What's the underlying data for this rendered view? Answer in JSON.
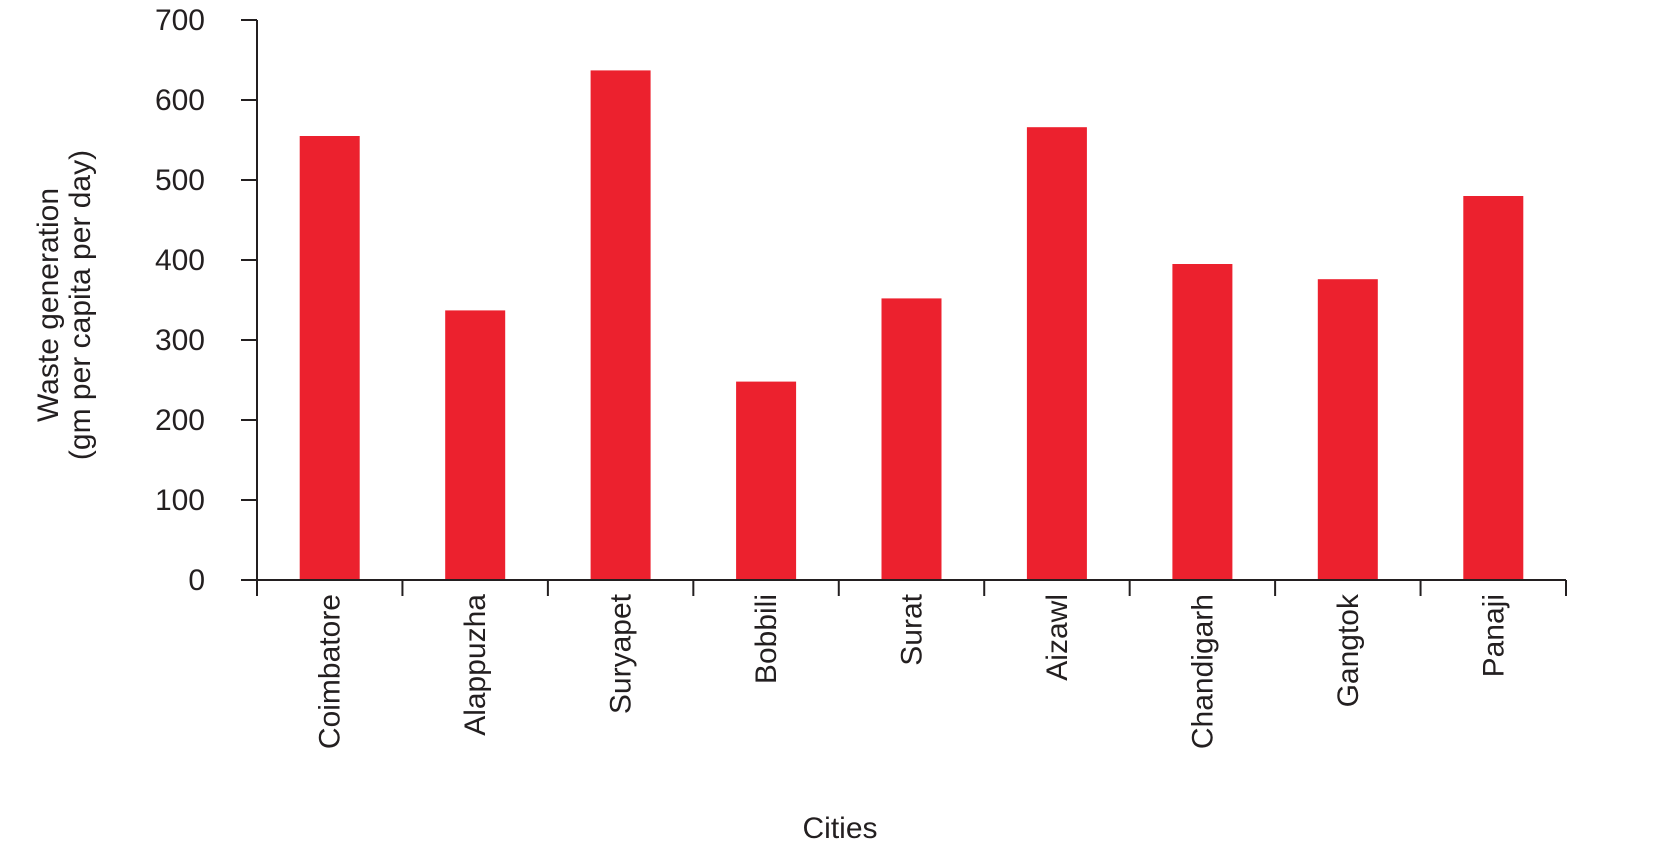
{
  "chart_data": {
    "type": "bar",
    "xlabel": "Cities",
    "ylabel_lines": [
      "Waste generation",
      "(gm per capita  per day)"
    ],
    "categories": [
      "Coimbatore",
      "Alappuzha",
      "Suryapet",
      "Bobbili",
      "Surat",
      "Aizawl",
      "Chandigarh",
      "Gangtok",
      "Panaji"
    ],
    "values": [
      555,
      337,
      637,
      248,
      352,
      566,
      395,
      376,
      480
    ],
    "ylim": [
      0,
      700
    ],
    "yticks": [
      0,
      100,
      200,
      300,
      400,
      500,
      600,
      700
    ],
    "bar_color": "#ec212e",
    "axis_color": "#231f20",
    "grid": false,
    "legend": "none"
  }
}
